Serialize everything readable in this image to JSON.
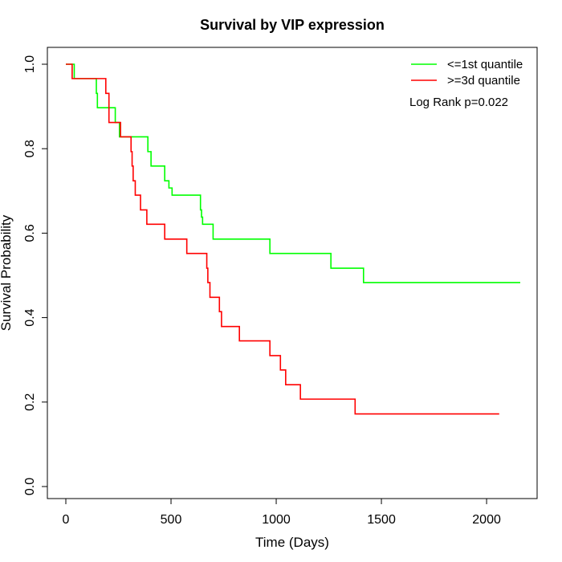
{
  "chart_data": {
    "type": "line",
    "title": "Survival by VIP expression",
    "xlabel": "Time (Days)",
    "ylabel": "Survival Probability",
    "xlim": [
      0,
      2160
    ],
    "ylim": [
      0,
      1
    ],
    "x_ticks": [
      0,
      500,
      1000,
      1500,
      2000
    ],
    "x_tick_labels": [
      "0",
      "500",
      "1000",
      "1500",
      "2000"
    ],
    "y_ticks": [
      0,
      0.2,
      0.4,
      0.6,
      0.8,
      1
    ],
    "y_tick_labels": [
      "0.0",
      "0.2",
      "0.4",
      "0.6",
      "0.8",
      "1.0"
    ],
    "legend_position": "top-right",
    "annotation": "Log Rank p=0.022",
    "grid": false,
    "series": [
      {
        "name": "<=1st quantile",
        "color": "#00ff00",
        "step": true,
        "x": [
          0,
          40,
          145,
          150,
          170,
          235,
          255,
          390,
          405,
          470,
          490,
          505,
          640,
          645,
          650,
          700,
          970,
          1260,
          1415,
          2160
        ],
        "y": [
          1.0,
          0.966,
          0.931,
          0.897,
          0.897,
          0.862,
          0.828,
          0.793,
          0.759,
          0.724,
          0.707,
          0.69,
          0.655,
          0.638,
          0.621,
          0.586,
          0.552,
          0.517,
          0.483,
          0.483
        ]
      },
      {
        "name": ">=3d quantile",
        "color": "#ff0000",
        "step": true,
        "x": [
          0,
          30,
          190,
          205,
          250,
          260,
          310,
          315,
          320,
          330,
          355,
          385,
          470,
          575,
          670,
          675,
          685,
          705,
          730,
          740,
          825,
          970,
          1020,
          1030,
          1045,
          1115,
          1375,
          2060
        ],
        "y": [
          1.0,
          0.966,
          0.931,
          0.862,
          0.862,
          0.828,
          0.793,
          0.759,
          0.724,
          0.69,
          0.655,
          0.621,
          0.586,
          0.552,
          0.517,
          0.483,
          0.448,
          0.448,
          0.414,
          0.379,
          0.345,
          0.31,
          0.276,
          0.276,
          0.241,
          0.207,
          0.172,
          0.172
        ]
      }
    ]
  }
}
